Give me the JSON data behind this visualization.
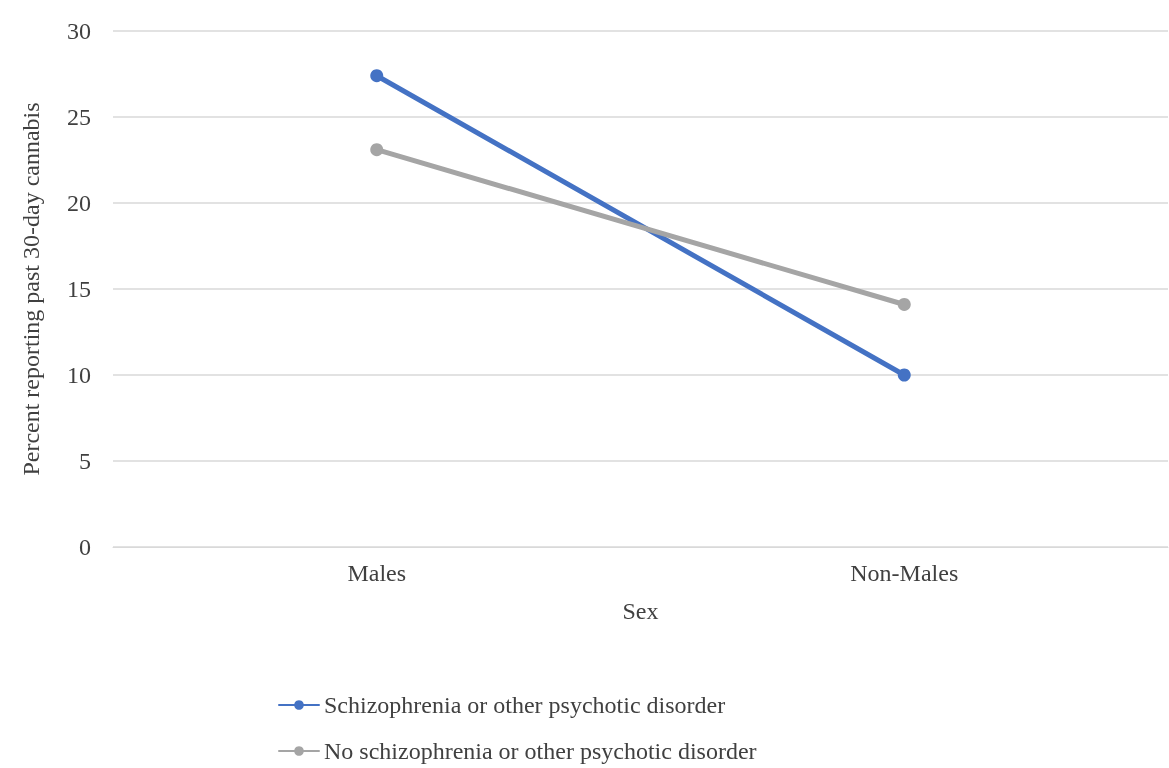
{
  "chart_data": {
    "type": "line",
    "xlabel": "Sex",
    "ylabel": "Percent reporting past 30-day cannabis",
    "categories": [
      "Males",
      "Non-Males"
    ],
    "series": [
      {
        "name": "Schizophrenia or other psychotic disorder",
        "color": "#4472c4",
        "values": [
          27.4,
          10.0
        ]
      },
      {
        "name": "No schizophrenia or other psychotic disorder",
        "color": "#a5a5a5",
        "values": [
          23.1,
          14.1
        ]
      }
    ],
    "ylim": [
      0,
      30
    ],
    "yticks": [
      0,
      5,
      10,
      15,
      20,
      25,
      30
    ],
    "grid": "y",
    "legend": "bottom",
    "marker": "circle",
    "line_style": "solid"
  }
}
